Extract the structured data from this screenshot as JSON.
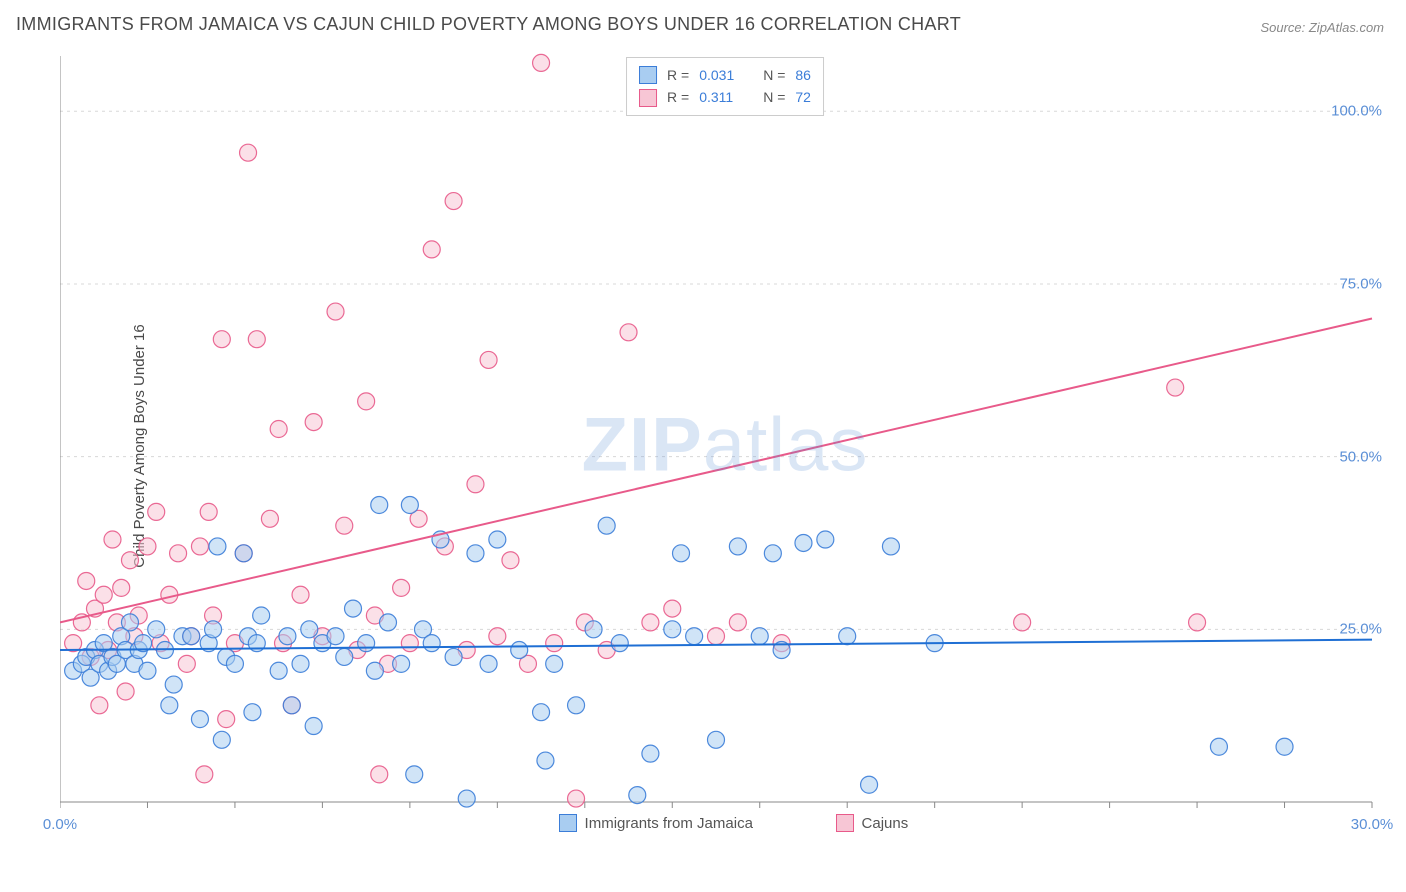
{
  "title": "IMMIGRANTS FROM JAMAICA VS CAJUN CHILD POVERTY AMONG BOYS UNDER 16 CORRELATION CHART",
  "source": "Source: ZipAtlas.com",
  "ylabel": "Child Poverty Among Boys Under 16",
  "watermark_bold": "ZIP",
  "watermark_rest": "atlas",
  "chart": {
    "type": "scatter",
    "background_color": "#ffffff",
    "grid_color": "#d8d8d8",
    "axis_color": "#888888",
    "xlim": [
      0,
      30
    ],
    "ylim": [
      0,
      108
    ],
    "xticks": [
      0,
      30
    ],
    "xtick_labels": [
      "0.0%",
      "30.0%"
    ],
    "yticks": [
      25,
      50,
      75,
      100
    ],
    "ytick_labels": [
      "25.0%",
      "50.0%",
      "75.0%",
      "100.0%"
    ],
    "ytick_color": "#5b8fd6",
    "xtick_color": "#5b8fd6",
    "marker_radius": 8.5,
    "marker_opacity": 0.55,
    "marker_stroke_width": 1.2,
    "trend_line_width": 2,
    "series": [
      {
        "name": "Immigrants from Jamaica",
        "fill_color": "#a9cdf1",
        "stroke_color": "#3b7dd8",
        "line_color": "#1f6fd4",
        "R": "0.031",
        "N": "86",
        "trend": {
          "x1": 0,
          "y1": 22.0,
          "x2": 30,
          "y2": 23.5
        },
        "points": [
          [
            0.3,
            19
          ],
          [
            0.5,
            20
          ],
          [
            0.6,
            21
          ],
          [
            0.7,
            18
          ],
          [
            0.8,
            22
          ],
          [
            0.9,
            20
          ],
          [
            1.0,
            23
          ],
          [
            1.1,
            19
          ],
          [
            1.2,
            21
          ],
          [
            1.3,
            20
          ],
          [
            1.4,
            24
          ],
          [
            1.5,
            22
          ],
          [
            1.6,
            26
          ],
          [
            1.7,
            20
          ],
          [
            1.8,
            22
          ],
          [
            1.9,
            23
          ],
          [
            2.0,
            19
          ],
          [
            2.2,
            25
          ],
          [
            2.4,
            22
          ],
          [
            2.5,
            14
          ],
          [
            2.6,
            17
          ],
          [
            2.8,
            24
          ],
          [
            3.0,
            24
          ],
          [
            3.2,
            12
          ],
          [
            3.4,
            23
          ],
          [
            3.5,
            25
          ],
          [
            3.6,
            37
          ],
          [
            3.7,
            9
          ],
          [
            3.8,
            21
          ],
          [
            4.0,
            20
          ],
          [
            4.2,
            36
          ],
          [
            4.3,
            24
          ],
          [
            4.4,
            13
          ],
          [
            4.5,
            23
          ],
          [
            4.6,
            27
          ],
          [
            5.0,
            19
          ],
          [
            5.2,
            24
          ],
          [
            5.3,
            14
          ],
          [
            5.5,
            20
          ],
          [
            5.7,
            25
          ],
          [
            5.8,
            11
          ],
          [
            6.0,
            23
          ],
          [
            6.3,
            24
          ],
          [
            6.5,
            21
          ],
          [
            6.7,
            28
          ],
          [
            7.0,
            23
          ],
          [
            7.2,
            19
          ],
          [
            7.3,
            43
          ],
          [
            7.5,
            26
          ],
          [
            7.8,
            20
          ],
          [
            8.0,
            43
          ],
          [
            8.1,
            4
          ],
          [
            8.3,
            25
          ],
          [
            8.5,
            23
          ],
          [
            8.7,
            38
          ],
          [
            9.0,
            21
          ],
          [
            9.3,
            0.5
          ],
          [
            9.5,
            36
          ],
          [
            9.8,
            20
          ],
          [
            10.0,
            38
          ],
          [
            10.5,
            22
          ],
          [
            11.0,
            13
          ],
          [
            11.1,
            6
          ],
          [
            11.3,
            20
          ],
          [
            11.8,
            14
          ],
          [
            12.2,
            25
          ],
          [
            12.5,
            40
          ],
          [
            12.8,
            23
          ],
          [
            13.2,
            1
          ],
          [
            13.5,
            7
          ],
          [
            14.0,
            25
          ],
          [
            14.2,
            36
          ],
          [
            14.5,
            24
          ],
          [
            15.0,
            9
          ],
          [
            15.5,
            37
          ],
          [
            16.0,
            24
          ],
          [
            16.3,
            36
          ],
          [
            16.5,
            22
          ],
          [
            17.0,
            37.5
          ],
          [
            17.5,
            38
          ],
          [
            18.0,
            24
          ],
          [
            18.5,
            2.5
          ],
          [
            19.0,
            37
          ],
          [
            20.0,
            23
          ],
          [
            26.5,
            8
          ],
          [
            28.0,
            8
          ]
        ]
      },
      {
        "name": "Cajuns",
        "fill_color": "#f7c6d5",
        "stroke_color": "#e85a8a",
        "line_color": "#e85a8a",
        "R": "0.311",
        "N": "72",
        "trend": {
          "x1": 0,
          "y1": 26.0,
          "x2": 30,
          "y2": 70.0
        },
        "points": [
          [
            0.3,
            23
          ],
          [
            0.5,
            26
          ],
          [
            0.6,
            32
          ],
          [
            0.7,
            21
          ],
          [
            0.8,
            28
          ],
          [
            0.9,
            14
          ],
          [
            1.0,
            30
          ],
          [
            1.1,
            22
          ],
          [
            1.2,
            38
          ],
          [
            1.3,
            26
          ],
          [
            1.4,
            31
          ],
          [
            1.5,
            16
          ],
          [
            1.6,
            35
          ],
          [
            1.7,
            24
          ],
          [
            1.8,
            27
          ],
          [
            2.0,
            37
          ],
          [
            2.2,
            42
          ],
          [
            2.3,
            23
          ],
          [
            2.5,
            30
          ],
          [
            2.7,
            36
          ],
          [
            2.9,
            20
          ],
          [
            3.0,
            24
          ],
          [
            3.2,
            37
          ],
          [
            3.3,
            4
          ],
          [
            3.4,
            42
          ],
          [
            3.5,
            27
          ],
          [
            3.7,
            67
          ],
          [
            3.8,
            12
          ],
          [
            4.0,
            23
          ],
          [
            4.2,
            36
          ],
          [
            4.3,
            94
          ],
          [
            4.5,
            67
          ],
          [
            4.8,
            41
          ],
          [
            5.0,
            54
          ],
          [
            5.1,
            23
          ],
          [
            5.3,
            14
          ],
          [
            5.5,
            30
          ],
          [
            5.8,
            55
          ],
          [
            6.0,
            24
          ],
          [
            6.3,
            71
          ],
          [
            6.5,
            40
          ],
          [
            6.8,
            22
          ],
          [
            7.0,
            58
          ],
          [
            7.2,
            27
          ],
          [
            7.3,
            4
          ],
          [
            7.5,
            20
          ],
          [
            7.8,
            31
          ],
          [
            8.0,
            23
          ],
          [
            8.2,
            41
          ],
          [
            8.5,
            80
          ],
          [
            8.8,
            37
          ],
          [
            9.0,
            87
          ],
          [
            9.3,
            22
          ],
          [
            9.5,
            46
          ],
          [
            9.8,
            64
          ],
          [
            10.0,
            24
          ],
          [
            10.3,
            35
          ],
          [
            10.7,
            20
          ],
          [
            11.0,
            107
          ],
          [
            11.3,
            23
          ],
          [
            11.8,
            0.5
          ],
          [
            12.0,
            26
          ],
          [
            12.5,
            22
          ],
          [
            13.0,
            68
          ],
          [
            13.5,
            26
          ],
          [
            14.0,
            28
          ],
          [
            15.0,
            24
          ],
          [
            15.5,
            26
          ],
          [
            16.5,
            23
          ],
          [
            22.0,
            26
          ],
          [
            25.5,
            60
          ],
          [
            26.0,
            26
          ]
        ]
      }
    ],
    "legend_bottom": [
      {
        "label": "Immigrants from Jamaica",
        "fill": "#a9cdf1",
        "stroke": "#3b7dd8"
      },
      {
        "label": "Cajuns",
        "fill": "#f7c6d5",
        "stroke": "#e85a8a"
      }
    ]
  }
}
